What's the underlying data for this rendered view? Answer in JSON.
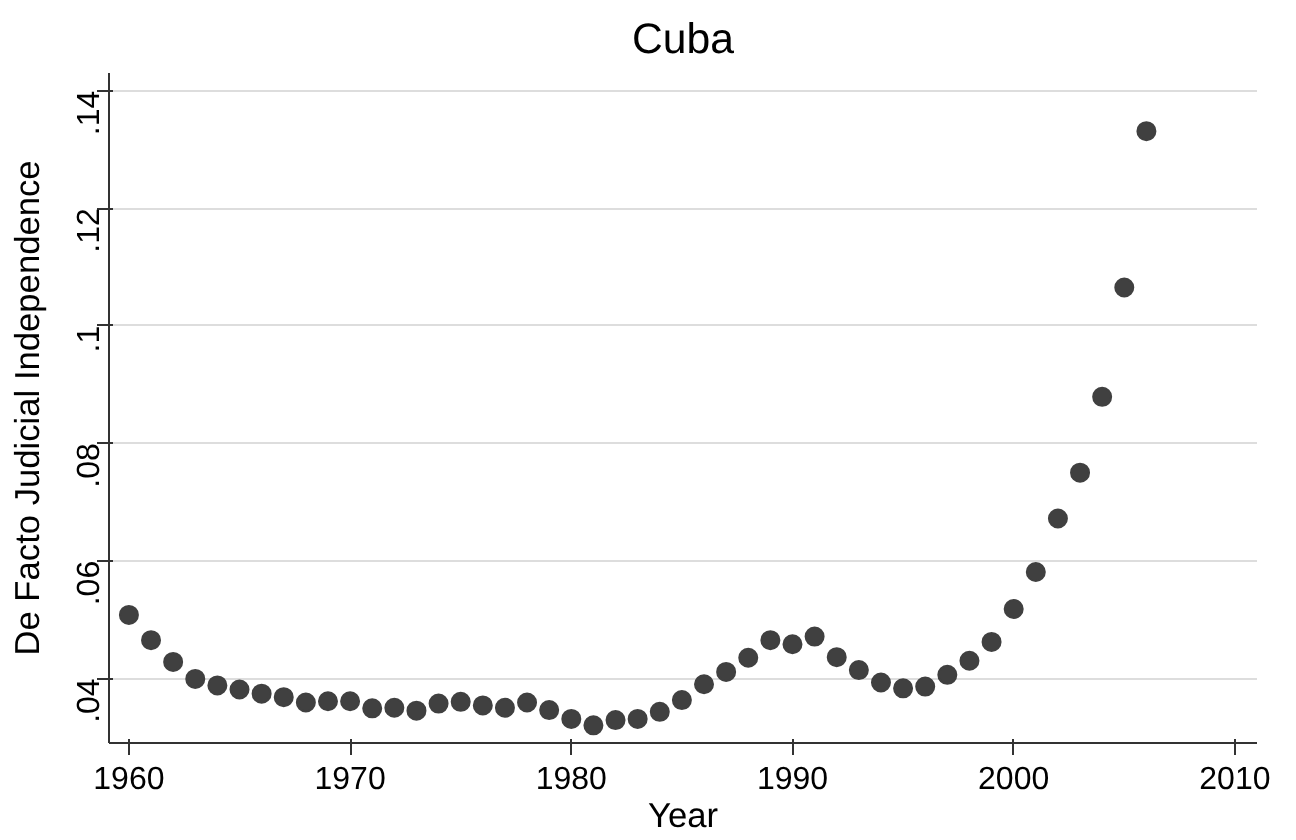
{
  "chart_data": {
    "type": "scatter",
    "title": "Cuba",
    "xlabel": "Year",
    "ylabel": "De Facto Judicial Independence",
    "x": [
      1960,
      1961,
      1962,
      1963,
      1964,
      1965,
      1966,
      1967,
      1968,
      1969,
      1970,
      1971,
      1972,
      1973,
      1974,
      1975,
      1976,
      1977,
      1978,
      1979,
      1980,
      1981,
      1982,
      1983,
      1984,
      1985,
      1986,
      1987,
      1988,
      1989,
      1990,
      1991,
      1992,
      1993,
      1994,
      1995,
      1996,
      1997,
      1998,
      1999,
      2000,
      2001,
      2002,
      2003,
      2004,
      2005,
      2006
    ],
    "series": [
      {
        "color": "#404040",
        "values": [
          0.0508,
          0.0465,
          0.0428,
          0.0399,
          0.0388,
          0.0381,
          0.0374,
          0.0368,
          0.0359,
          0.0361,
          0.0361,
          0.0349,
          0.035,
          0.0345,
          0.0357,
          0.036,
          0.0354,
          0.035,
          0.0359,
          0.0346,
          0.0331,
          0.032,
          0.0329,
          0.0331,
          0.0343,
          0.0363,
          0.039,
          0.0411,
          0.0435,
          0.0465,
          0.0458,
          0.0471,
          0.0436,
          0.0414,
          0.0393,
          0.0383,
          0.0386,
          0.0406,
          0.043,
          0.0462,
          0.0518,
          0.0581,
          0.0672,
          0.075,
          0.0879,
          0.1065,
          0.1331
        ]
      }
    ],
    "xlim": [
      1959.1,
      2011
    ],
    "xticks": [
      1960,
      1970,
      1980,
      1990,
      2000,
      2010
    ],
    "ylim": [
      0.029,
      0.143
    ],
    "yticks": [
      {
        "value": 0.04,
        "label": ".04"
      },
      {
        "value": 0.06,
        "label": ".06"
      },
      {
        "value": 0.08,
        "label": ".08"
      },
      {
        "value": 0.1,
        "label": ".1"
      },
      {
        "value": 0.12,
        "label": ".12"
      },
      {
        "value": 0.14,
        "label": ".14"
      }
    ],
    "grid": "y",
    "marker": "circle"
  }
}
